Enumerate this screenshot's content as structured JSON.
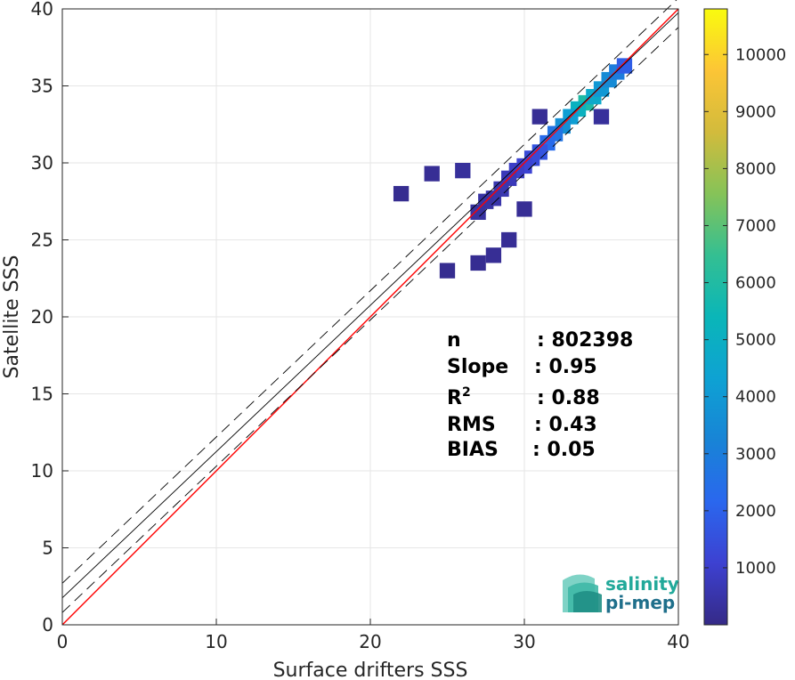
{
  "chart_data": {
    "type": "heatmap",
    "xlabel": "Surface drifters SSS",
    "ylabel": "Satellite SSS",
    "xlim": [
      0,
      40
    ],
    "ylim": [
      0,
      40
    ],
    "x_ticks": [
      0,
      10,
      20,
      30,
      40
    ],
    "y_ticks": [
      0,
      5,
      10,
      15,
      20,
      25,
      30,
      35,
      40
    ],
    "grid": true,
    "colorbar": {
      "range": [
        0,
        10800
      ],
      "ticks": [
        1000,
        2000,
        3000,
        4000,
        5000,
        6000,
        7000,
        8000,
        9000,
        10000
      ],
      "colormap": "parula"
    },
    "density": [
      {
        "x": 34.0,
        "y": 33.9,
        "count": 4000
      },
      {
        "x": 33.5,
        "y": 33.5,
        "count": 3000
      },
      {
        "x": 34.5,
        "y": 34.3,
        "count": 2500
      },
      {
        "x": 33.0,
        "y": 33.0,
        "count": 2000
      },
      {
        "x": 35.0,
        "y": 34.8,
        "count": 1800
      },
      {
        "x": 32.5,
        "y": 32.4,
        "count": 1500
      },
      {
        "x": 35.5,
        "y": 35.4,
        "count": 1400
      },
      {
        "x": 36.0,
        "y": 35.9,
        "count": 1000
      },
      {
        "x": 32.0,
        "y": 31.9,
        "count": 800
      },
      {
        "x": 31.5,
        "y": 31.3,
        "count": 600
      },
      {
        "x": 36.5,
        "y": 36.3,
        "count": 400
      },
      {
        "x": 31.0,
        "y": 30.7,
        "count": 300
      },
      {
        "x": 30.5,
        "y": 30.3,
        "count": 200
      },
      {
        "x": 30.0,
        "y": 29.8,
        "count": 150
      },
      {
        "x": 29.5,
        "y": 29.5,
        "count": 100
      },
      {
        "x": 29.0,
        "y": 29.0,
        "count": 60
      },
      {
        "x": 28.5,
        "y": 28.3,
        "count": 40
      },
      {
        "x": 28.0,
        "y": 27.7,
        "count": 30
      },
      {
        "x": 27.5,
        "y": 27.5,
        "count": 20
      },
      {
        "x": 27.0,
        "y": 26.8,
        "count": 15
      },
      {
        "x": 26.0,
        "y": 29.5,
        "count": 10
      },
      {
        "x": 24.0,
        "y": 29.3,
        "count": 5
      },
      {
        "x": 29.0,
        "y": 25.0,
        "count": 5
      },
      {
        "x": 28.0,
        "y": 24.0,
        "count": 5
      },
      {
        "x": 27.0,
        "y": 23.5,
        "count": 3
      },
      {
        "x": 30.0,
        "y": 27.0,
        "count": 5
      },
      {
        "x": 31.0,
        "y": 33.0,
        "count": 5
      },
      {
        "x": 35.0,
        "y": 33.0,
        "count": 10
      },
      {
        "x": 25.0,
        "y": 23.0,
        "count": 2
      },
      {
        "x": 22.0,
        "y": 28.0,
        "count": 2
      }
    ],
    "lines": [
      {
        "name": "1:1",
        "color": "#ff0000",
        "slope": 1.0,
        "intercept": 0.0,
        "style": "solid"
      },
      {
        "name": "regression",
        "color": "#000000",
        "slope": 0.95,
        "intercept": 1.75,
        "style": "solid"
      },
      {
        "name": "upper",
        "color": "#000000",
        "slope": 0.95,
        "intercept": 2.7,
        "style": "dashed"
      },
      {
        "name": "lower",
        "color": "#000000",
        "slope": 0.95,
        "intercept": 0.8,
        "style": "dashed"
      }
    ]
  },
  "stats": [
    {
      "label": "n",
      "value": ": 802398"
    },
    {
      "label": "Slope",
      "value": ": 0.95"
    },
    {
      "label": "R",
      "value": ": 0.88"
    },
    {
      "label": "RMS",
      "value": ": 0.43"
    },
    {
      "label": "BIAS",
      "value": ": 0.05"
    }
  ],
  "r_sup": "2",
  "logo": {
    "line1": "salinity",
    "line2": "pi-mep"
  },
  "colors": {
    "one_to_one": "#ff0000",
    "regression": "#000000",
    "logo_teal": "#22a99a",
    "logo_blue": "#1f6f8b"
  }
}
